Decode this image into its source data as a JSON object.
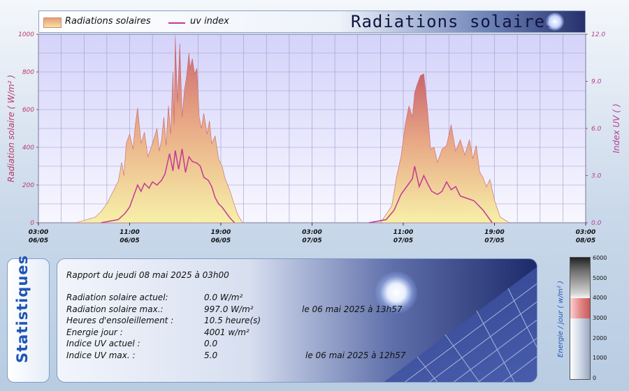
{
  "header": {
    "title": "Radiations solaires",
    "legend_radiation": "Radiations solaires",
    "legend_uv": "uv index"
  },
  "chart_data": {
    "type": "area",
    "left_axis": {
      "label": "Radiation solaire ( W/m² )",
      "ylim": [
        0,
        1000
      ],
      "ticks": [
        "0",
        "200",
        "400",
        "600",
        "800",
        "1000"
      ]
    },
    "right_axis": {
      "label": "Index UV ( )",
      "ylim": [
        0,
        12
      ],
      "ticks": [
        "0.0",
        "3.0",
        "6.0",
        "9.0",
        "12.0"
      ]
    },
    "x_ticks": [
      {
        "time": "03:00",
        "date": "06/05",
        "hours": 0
      },
      {
        "time": "11:00",
        "date": "06/05",
        "hours": 8
      },
      {
        "time": "19:00",
        "date": "06/05",
        "hours": 16
      },
      {
        "time": "03:00",
        "date": "07/05",
        "hours": 24
      },
      {
        "time": "11:00",
        "date": "07/05",
        "hours": 32
      },
      {
        "time": "19:00",
        "date": "07/05",
        "hours": 40
      },
      {
        "time": "03:00",
        "date": "08/05",
        "hours": 48
      }
    ],
    "xlim_hours": [
      0,
      48
    ],
    "grid": true,
    "legend": "top-left",
    "series": [
      {
        "name": "Radiations solaires",
        "axis": "left",
        "color": "#d9756f",
        "x": [
          3.3,
          5.0,
          5.5,
          6.0,
          6.5,
          7.0,
          7.3,
          7.5,
          7.7,
          8.0,
          8.3,
          8.5,
          8.7,
          9.0,
          9.3,
          9.6,
          10.0,
          10.4,
          10.6,
          10.8,
          11.0,
          11.2,
          11.4,
          11.6,
          11.8,
          11.9,
          12.0,
          12.2,
          12.4,
          12.6,
          12.8,
          13.0,
          13.2,
          13.3,
          13.5,
          13.7,
          13.9,
          14.1,
          14.3,
          14.5,
          14.8,
          15.0,
          15.2,
          15.5,
          15.8,
          16.1,
          16.4,
          16.8,
          17.1,
          17.5,
          17.9,
          30.0,
          31.0,
          31.4,
          31.8,
          32.2,
          32.5,
          32.8,
          33.0,
          33.2,
          33.5,
          33.8,
          34.1,
          34.4,
          34.7,
          35.0,
          35.4,
          35.8,
          36.2,
          36.6,
          37.0,
          37.4,
          37.8,
          38.1,
          38.4,
          38.7,
          39.0,
          39.3,
          39.6,
          40.0,
          40.5,
          41.3
        ],
        "y": [
          0,
          30,
          60,
          100,
          160,
          220,
          320,
          250,
          420,
          470,
          390,
          520,
          610,
          420,
          480,
          350,
          420,
          500,
          380,
          440,
          560,
          410,
          620,
          470,
          800,
          520,
          980,
          640,
          950,
          560,
          700,
          780,
          900,
          820,
          870,
          790,
          820,
          560,
          500,
          580,
          470,
          540,
          420,
          460,
          340,
          300,
          230,
          170,
          110,
          40,
          0,
          0,
          90,
          240,
          350,
          530,
          620,
          560,
          690,
          730,
          780,
          790,
          620,
          390,
          400,
          320,
          390,
          410,
          520,
          380,
          440,
          360,
          440,
          340,
          410,
          270,
          240,
          190,
          230,
          120,
          30,
          0
        ]
      },
      {
        "name": "uv index",
        "axis": "right",
        "color": "#c23a95",
        "x": [
          5.5,
          7.0,
          7.6,
          8.0,
          8.4,
          8.7,
          9.0,
          9.3,
          9.7,
          10.0,
          10.4,
          10.8,
          11.1,
          11.5,
          11.8,
          12.0,
          12.3,
          12.6,
          12.9,
          13.2,
          13.5,
          13.9,
          14.2,
          14.5,
          14.9,
          15.2,
          15.5,
          15.8,
          16.1,
          16.5,
          16.8,
          17.2,
          29.0,
          30.5,
          31.2,
          31.8,
          32.4,
          32.8,
          33.0,
          33.4,
          33.8,
          34.2,
          34.5,
          35.0,
          35.4,
          35.8,
          36.2,
          36.6,
          37.0,
          37.4,
          37.8,
          38.2,
          38.6,
          39.0,
          39.4,
          39.8
        ],
        "y": [
          0,
          0.2,
          0.6,
          1.0,
          1.8,
          2.4,
          2.0,
          2.5,
          2.2,
          2.6,
          2.4,
          2.7,
          3.1,
          4.4,
          3.3,
          4.6,
          3.4,
          4.7,
          3.2,
          4.2,
          3.9,
          3.8,
          3.6,
          2.9,
          2.7,
          2.3,
          1.6,
          1.2,
          1.0,
          0.6,
          0.3,
          0,
          0,
          0.2,
          0.8,
          1.8,
          2.4,
          2.8,
          3.6,
          2.3,
          3.0,
          2.4,
          2.0,
          1.8,
          2.0,
          2.6,
          2.1,
          2.3,
          1.7,
          1.6,
          1.5,
          1.4,
          1.1,
          0.8,
          0.4,
          0
        ]
      }
    ]
  },
  "stats": {
    "tab_label": "Statistiques",
    "report": "Rapport du jeudi 08 mai 2025 à 03h00",
    "rows": [
      {
        "label": "Radiation solaire actuel:",
        "value": " 0.0 W/m²",
        "when": ""
      },
      {
        "label": "Radiation solaire max.:",
        "value": "997.0 W/m²",
        "when": "le 06 mai 2025 à 13h57"
      },
      {
        "label": "Heures d'ensoleillement :",
        "value": "10.5 heure(s)",
        "when": ""
      },
      {
        "label": "Energie jour :",
        "value": "4001 w/m²",
        "when": ""
      },
      {
        "label": "Indice UV actuel :",
        "value": "0.0",
        "when": ""
      },
      {
        "label": "Indice UV max. :",
        "value": "5.0",
        "when": "le 06 mai 2025 à 12h57"
      }
    ]
  },
  "energy_gauge": {
    "label": "Energie / jour  ( w/m² )",
    "value": 4001,
    "max": 6000,
    "ticks": [
      "6000",
      "5000",
      "4000",
      "3000",
      "2000",
      "1000",
      "0"
    ]
  },
  "colors": {
    "accent": "#1f55b7",
    "uv": "#c23a95",
    "radiation": "#d9756f"
  }
}
